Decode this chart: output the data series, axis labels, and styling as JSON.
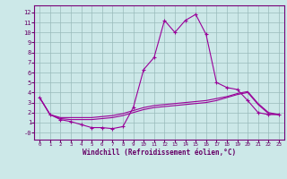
{
  "xlabel": "Windchill (Refroidissement éolien,°C)",
  "bg_color": "#cce8e8",
  "line_color": "#990099",
  "grid_color": "#99bbbb",
  "xlim": [
    -0.5,
    23.5
  ],
  "ylim": [
    -0.7,
    12.7
  ],
  "xticks": [
    0,
    1,
    2,
    3,
    4,
    5,
    6,
    7,
    8,
    9,
    10,
    11,
    12,
    13,
    14,
    15,
    16,
    17,
    18,
    19,
    20,
    21,
    22,
    23
  ],
  "yticks": [
    0,
    1,
    2,
    3,
    4,
    5,
    6,
    7,
    8,
    9,
    10,
    11,
    12
  ],
  "line1_x": [
    0,
    1,
    2,
    3,
    4,
    5,
    6,
    7,
    8,
    9,
    10,
    11,
    12,
    13,
    14,
    15,
    16,
    17,
    18,
    19,
    20,
    21,
    22,
    23
  ],
  "line1_y": [
    3.5,
    1.8,
    1.3,
    1.1,
    0.8,
    0.5,
    0.5,
    0.4,
    0.6,
    2.5,
    6.3,
    7.5,
    11.2,
    10.0,
    11.2,
    11.8,
    9.8,
    5.0,
    4.5,
    4.3,
    3.2,
    2.0,
    1.8,
    1.8
  ],
  "line2_x": [
    0,
    1,
    2,
    3,
    4,
    5,
    6,
    7,
    8,
    9,
    10,
    11,
    12,
    13,
    14,
    15,
    16,
    17,
    18,
    19,
    20,
    21,
    22,
    23
  ],
  "line2_y": [
    3.5,
    1.8,
    1.5,
    1.5,
    1.5,
    1.5,
    1.6,
    1.7,
    1.9,
    2.2,
    2.5,
    2.7,
    2.8,
    2.9,
    3.0,
    3.1,
    3.2,
    3.4,
    3.6,
    3.9,
    4.1,
    2.9,
    2.0,
    1.8
  ],
  "line3_x": [
    0,
    1,
    2,
    3,
    4,
    5,
    6,
    7,
    8,
    9,
    10,
    11,
    12,
    13,
    14,
    15,
    16,
    17,
    18,
    19,
    20,
    21,
    22,
    23
  ],
  "line3_y": [
    3.5,
    1.8,
    1.4,
    1.3,
    1.3,
    1.3,
    1.4,
    1.5,
    1.7,
    2.0,
    2.3,
    2.5,
    2.6,
    2.7,
    2.8,
    2.9,
    3.0,
    3.2,
    3.5,
    3.8,
    4.0,
    2.8,
    1.9,
    1.8
  ],
  "ytick_labels": [
    "-0",
    "1",
    "2",
    "3",
    "4",
    "5",
    "6",
    "7",
    "8",
    "9",
    "10",
    "11",
    "12"
  ]
}
